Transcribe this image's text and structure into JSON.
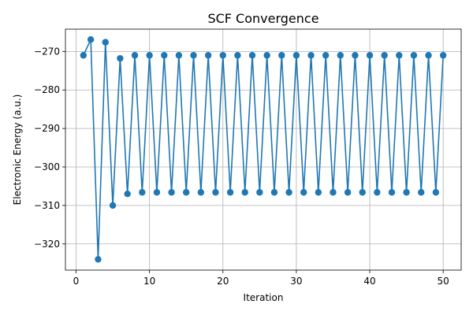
{
  "chart_data": {
    "type": "line",
    "title": "SCF Convergence",
    "xlabel": "Iteration",
    "ylabel": "Electronic Energy (a.u.)",
    "xlim": [
      -1.45,
      52.45
    ],
    "ylim": [
      -326.8,
      -264.2
    ],
    "xticks": [
      0,
      10,
      20,
      30,
      40,
      50
    ],
    "yticks": [
      -320,
      -310,
      -300,
      -290,
      -280,
      -270
    ],
    "xtick_labels": [
      "0",
      "10",
      "20",
      "30",
      "40",
      "50"
    ],
    "ytick_labels": [
      "−320",
      "−310",
      "−300",
      "−290",
      "−280",
      "−270"
    ],
    "grid": true,
    "series": [
      {
        "color": "#1f77b4",
        "marker": "circle",
        "x": [
          1,
          2,
          3,
          4,
          5,
          6,
          7,
          8,
          9,
          10,
          11,
          12,
          13,
          14,
          15,
          16,
          17,
          18,
          19,
          20,
          21,
          22,
          23,
          24,
          25,
          26,
          27,
          28,
          29,
          30,
          31,
          32,
          33,
          34,
          35,
          36,
          37,
          38,
          39,
          40,
          41,
          42,
          43,
          44,
          45,
          46,
          47,
          48,
          49,
          50
        ],
        "y": [
          -271.0,
          -266.9,
          -324.0,
          -267.6,
          -310.0,
          -271.8,
          -307.0,
          -271.0,
          -306.6,
          -271.0,
          -306.6,
          -271.0,
          -306.6,
          -271.0,
          -306.6,
          -271.0,
          -306.6,
          -271.0,
          -306.6,
          -271.0,
          -306.6,
          -271.0,
          -306.6,
          -271.0,
          -306.6,
          -271.0,
          -306.6,
          -271.0,
          -306.6,
          -271.0,
          -306.6,
          -271.0,
          -306.6,
          -271.0,
          -306.6,
          -271.0,
          -306.6,
          -271.0,
          -306.6,
          -271.0,
          -306.6,
          -271.0,
          -306.6,
          -271.0,
          -306.6,
          -271.0,
          -306.6,
          -271.0,
          -306.6,
          -271.0
        ]
      }
    ]
  }
}
